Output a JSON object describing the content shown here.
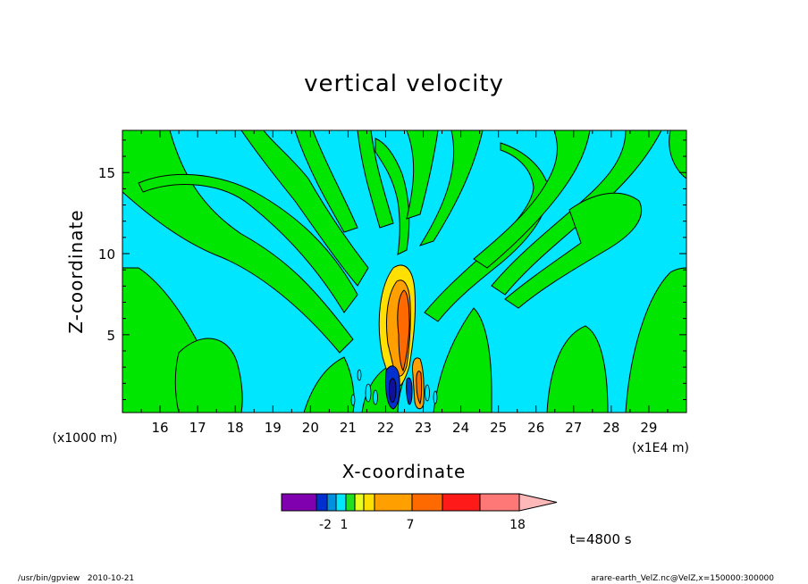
{
  "chart_data": {
    "type": "contour",
    "title": "vertical velocity",
    "xlabel": "X-coordinate",
    "ylabel": "Z-coordinate",
    "x_unit": "(x1E4 m)",
    "y_unit": "(x1000 m)",
    "xlim": [
      15.0,
      30.0
    ],
    "ylim": [
      0.2,
      17.6
    ],
    "x_ticks": [
      "16",
      "17",
      "18",
      "19",
      "20",
      "21",
      "22",
      "23",
      "24",
      "25",
      "26",
      "27",
      "28",
      "29"
    ],
    "y_ticks": [
      "5",
      "10",
      "15"
    ],
    "colorbar": {
      "labels": [
        "-2",
        "1",
        "7",
        "18"
      ],
      "colors": [
        "#8000b0",
        "#0030d0",
        "#0090e0",
        "#00e8ff",
        "#20e020",
        "#e8ff20",
        "#ffe000",
        "#ffa000",
        "#ff6a00",
        "#ff1a1a",
        "#ff7878",
        "#ffb8b8"
      ]
    },
    "colors": {
      "background_pos": "#00e600",
      "background_neg": "#00e6ff",
      "strong_pos": "#ff8c00",
      "strong_neg": "#1010d0"
    },
    "annotation": "t=4800 s"
  },
  "footer": {
    "left": "/usr/bin/gpview   2010-10-21",
    "right": "arare-earth_VelZ.nc@VelZ,x=150000:300000"
  }
}
